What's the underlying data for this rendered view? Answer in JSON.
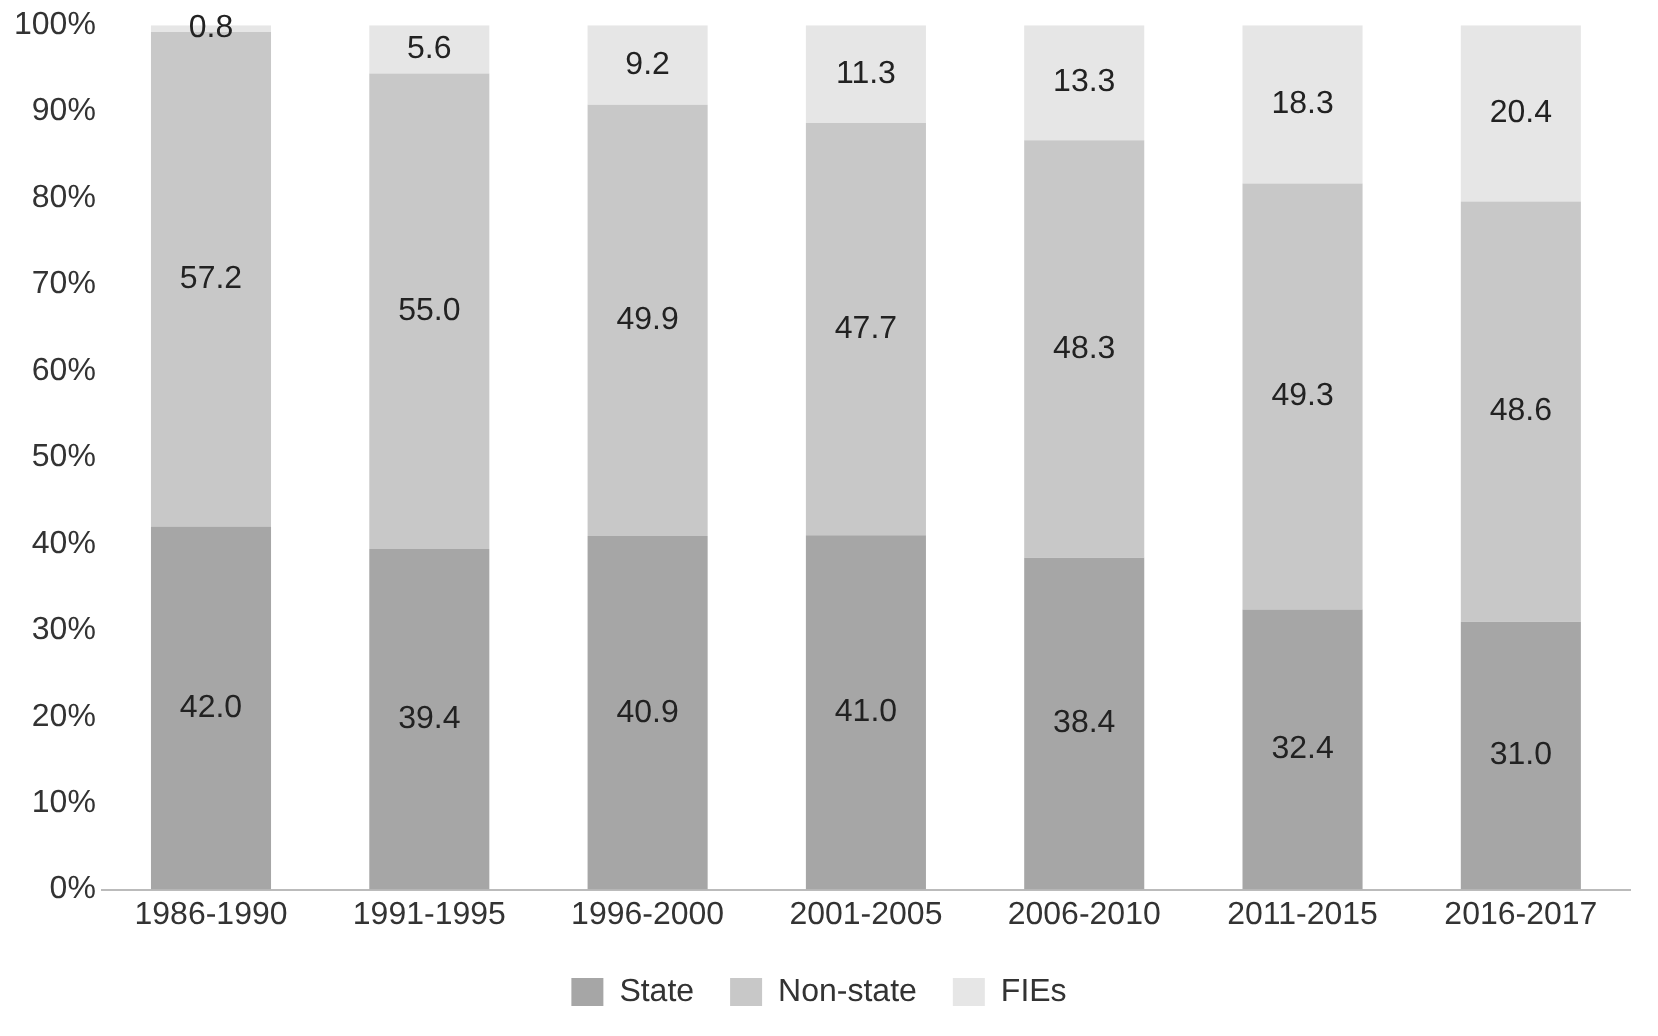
{
  "chart_data": {
    "type": "bar",
    "stacked": true,
    "categories": [
      "1986-1990",
      "1991-1995",
      "1996-2000",
      "2001-2005",
      "2006-2010",
      "2011-2015",
      "2016-2017"
    ],
    "series": [
      {
        "name": "State",
        "color": "#a6a6a6",
        "values": [
          42.0,
          39.4,
          40.9,
          41.0,
          38.4,
          32.4,
          31.0
        ],
        "value_labels": [
          "42.0",
          "39.4",
          "40.9",
          "41.0",
          "38.4",
          "32.4",
          "31.0"
        ]
      },
      {
        "name": "Non-state",
        "color": "#c8c8c8",
        "values": [
          57.2,
          55.0,
          49.9,
          47.7,
          48.3,
          49.3,
          48.6
        ],
        "value_labels": [
          "57.2",
          "55.0",
          "49.9",
          "47.7",
          "48.3",
          "49.3",
          "48.6"
        ]
      },
      {
        "name": "FIEs",
        "color": "#e6e6e6",
        "values": [
          0.8,
          5.6,
          9.2,
          11.3,
          13.3,
          18.3,
          20.4
        ],
        "value_labels": [
          "0.8",
          "5.6",
          "9.2",
          "11.3",
          "13.3",
          "18.3",
          "20.4"
        ]
      }
    ],
    "ylim": [
      0,
      100
    ],
    "yticks": [
      {
        "value": 0,
        "label": "0%"
      },
      {
        "value": 10,
        "label": "10%"
      },
      {
        "value": 20,
        "label": "20%"
      },
      {
        "value": 30,
        "label": "30%"
      },
      {
        "value": 40,
        "label": "40%"
      },
      {
        "value": 50,
        "label": "50%"
      },
      {
        "value": 60,
        "label": "60%"
      },
      {
        "value": 70,
        "label": "70%"
      },
      {
        "value": 80,
        "label": "80%"
      },
      {
        "value": 90,
        "label": "90%"
      },
      {
        "value": 100,
        "label": "100%"
      }
    ],
    "grid": false,
    "legend": "bottom"
  }
}
